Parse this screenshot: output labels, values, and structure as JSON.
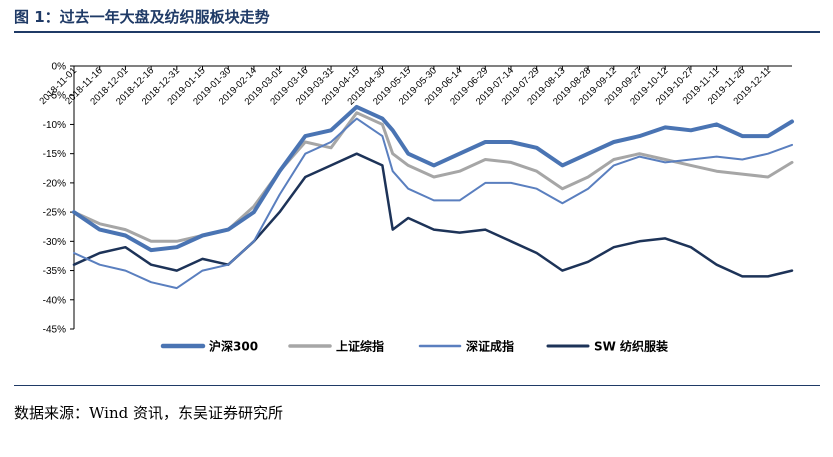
{
  "title": "图 1：过去一年大盘及纺织服板块走势",
  "source": "数据来源：Wind 资讯，东吴证券研究所",
  "chart_data": {
    "type": "line",
    "title": "图 1：过去一年大盘及纺织服板块走势",
    "xlabel": "",
    "ylabel": "",
    "x_ticks": [
      "2018-11-01",
      "2018-11-16",
      "2018-12-01",
      "2018-12-16",
      "2018-12-31",
      "2019-01-15",
      "2019-01-30",
      "2019-02-14",
      "2019-03-01",
      "2019-03-16",
      "2019-03-31",
      "2019-04-15",
      "2019-04-30",
      "2019-05-15",
      "2019-05-30",
      "2019-06-14",
      "2019-06-29",
      "2019-07-14",
      "2019-07-29",
      "2019-08-13",
      "2019-08-28",
      "2019-09-12",
      "2019-09-27",
      "2019-10-12",
      "2019-10-27",
      "2019-11-11",
      "2019-11-26",
      "2019-12-11"
    ],
    "y_ticks": [
      "0%",
      "-5%",
      "-10%",
      "-15%",
      "-20%",
      "-25%",
      "-30%",
      "-35%",
      "-40%",
      "-45%"
    ],
    "ylim": [
      -45,
      0
    ],
    "legend_position": "bottom",
    "grid": false,
    "series": [
      {
        "name": "沪深300",
        "color": "#4a74b3",
        "width": 4,
        "x": [
          "2018-11-01",
          "2018-11-16",
          "2018-12-01",
          "2018-12-16",
          "2018-12-31",
          "2019-01-15",
          "2019-01-30",
          "2019-02-14",
          "2019-03-01",
          "2019-03-16",
          "2019-03-31",
          "2019-04-15",
          "2019-04-30",
          "2019-05-06",
          "2019-05-15",
          "2019-05-30",
          "2019-06-14",
          "2019-06-29",
          "2019-07-14",
          "2019-07-29",
          "2019-08-13",
          "2019-08-28",
          "2019-09-12",
          "2019-09-27",
          "2019-10-12",
          "2019-10-27",
          "2019-11-11",
          "2019-11-26",
          "2019-12-11",
          "2019-12-25"
        ],
        "values": [
          -25,
          -28,
          -29,
          -31.5,
          -31,
          -29,
          -28,
          -25,
          -18,
          -12,
          -11,
          -7,
          -9,
          -11,
          -15,
          -17,
          -15,
          -13,
          -13,
          -14,
          -17,
          -15,
          -13,
          -12,
          -10.5,
          -11,
          -10,
          -12,
          -12,
          -9.5
        ]
      },
      {
        "name": "上证综指",
        "color": "#a6a6a6",
        "width": 3,
        "x": [
          "2018-11-01",
          "2018-11-16",
          "2018-12-01",
          "2018-12-16",
          "2018-12-31",
          "2019-01-15",
          "2019-01-30",
          "2019-02-14",
          "2019-03-01",
          "2019-03-16",
          "2019-03-31",
          "2019-04-15",
          "2019-04-30",
          "2019-05-06",
          "2019-05-15",
          "2019-05-30",
          "2019-06-14",
          "2019-06-29",
          "2019-07-14",
          "2019-07-29",
          "2019-08-13",
          "2019-08-28",
          "2019-09-12",
          "2019-09-27",
          "2019-10-12",
          "2019-10-27",
          "2019-11-11",
          "2019-11-26",
          "2019-12-11",
          "2019-12-25"
        ],
        "values": [
          -25,
          -27,
          -28,
          -30,
          -30,
          -29,
          -28,
          -24,
          -18,
          -13,
          -14,
          -8,
          -10,
          -15,
          -17,
          -19,
          -18,
          -16,
          -16.5,
          -18,
          -21,
          -19,
          -16,
          -15,
          -16,
          -17,
          -18,
          -18.5,
          -19,
          -16.5
        ]
      },
      {
        "name": "深证成指",
        "color": "#5a7fbf",
        "width": 2,
        "x": [
          "2018-11-01",
          "2018-11-16",
          "2018-12-01",
          "2018-12-16",
          "2018-12-31",
          "2019-01-15",
          "2019-01-30",
          "2019-02-14",
          "2019-03-01",
          "2019-03-16",
          "2019-03-31",
          "2019-04-15",
          "2019-04-30",
          "2019-05-06",
          "2019-05-15",
          "2019-05-30",
          "2019-06-14",
          "2019-06-29",
          "2019-07-14",
          "2019-07-29",
          "2019-08-13",
          "2019-08-28",
          "2019-09-12",
          "2019-09-27",
          "2019-10-12",
          "2019-10-27",
          "2019-11-11",
          "2019-11-26",
          "2019-12-11",
          "2019-12-25"
        ],
        "values": [
          -32,
          -34,
          -35,
          -37,
          -38,
          -35,
          -34,
          -30,
          -22,
          -15,
          -13,
          -9,
          -12,
          -18,
          -21,
          -23,
          -23,
          -20,
          -20,
          -21,
          -23.5,
          -21,
          -17,
          -15.5,
          -16.5,
          -16,
          -15.5,
          -16,
          -15,
          -13.5
        ]
      },
      {
        "name": "SW 纺织服装",
        "color": "#1d3358",
        "width": 2.5,
        "x": [
          "2018-11-01",
          "2018-11-16",
          "2018-12-01",
          "2018-12-16",
          "2018-12-31",
          "2019-01-15",
          "2019-01-30",
          "2019-02-14",
          "2019-03-01",
          "2019-03-16",
          "2019-03-31",
          "2019-04-15",
          "2019-04-30",
          "2019-05-06",
          "2019-05-15",
          "2019-05-30",
          "2019-06-14",
          "2019-06-29",
          "2019-07-14",
          "2019-07-29",
          "2019-08-13",
          "2019-08-28",
          "2019-09-12",
          "2019-09-27",
          "2019-10-12",
          "2019-10-27",
          "2019-11-11",
          "2019-11-26",
          "2019-12-11",
          "2019-12-25"
        ],
        "values": [
          -34,
          -32,
          -31,
          -34,
          -35,
          -33,
          -34,
          -30,
          -25,
          -19,
          -17,
          -15,
          -17,
          -28,
          -26,
          -28,
          -28.5,
          -28,
          -30,
          -32,
          -35,
          -33.5,
          -31,
          -30,
          -29.5,
          -31,
          -34,
          -36,
          -36,
          -35
        ]
      }
    ]
  }
}
